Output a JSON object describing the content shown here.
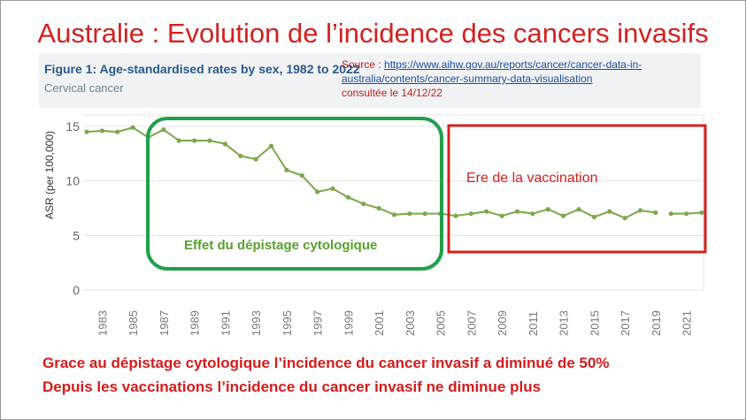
{
  "title": "Australie : Evolution de l’incidence des cancers invasifs",
  "figure": {
    "title": "Figure 1: Age-standardised rates by sex, 1982 to 2022",
    "subtitle": "Cervical cancer"
  },
  "source": {
    "prefix": "Source : ",
    "url_text": "https://www.aihw.gov.au/reports/cancer/cancer-data-in-australia/contents/cancer-summary-data-visualisation",
    "consulted": "consultée le 14/12/22"
  },
  "annotations": {
    "screening": "Effet du dépistage cytologique",
    "vaccination": "Ere de la vaccination"
  },
  "colors": {
    "title": "#d42020",
    "line": "#7aa84a",
    "screening_box": "#1fa04a",
    "vaccination_box": "#d42020"
  },
  "conclusions": {
    "line1": "Grace au dépistage cytologique l’incidence du cancer invasif a diminué de 50%",
    "line2": "Depuis les vaccinations l’incidence du cancer invasif ne diminue plus"
  },
  "chart_data": {
    "type": "line",
    "title": "Figure 1: Age-standardised rates by sex, 1982 to 2022",
    "subtitle": "Cervical cancer",
    "xlabel": "",
    "ylabel": "ASR (per 100,000)",
    "ylim": [
      0,
      15
    ],
    "yticks": [
      0,
      5,
      10,
      15
    ],
    "xlim": [
      1982,
      2022
    ],
    "xticks": [
      "1983",
      "1985",
      "1987",
      "1989",
      "1991",
      "1993",
      "1995",
      "1997",
      "1999",
      "2001",
      "2003",
      "2005",
      "2007",
      "2009",
      "2011",
      "2013",
      "2015",
      "2017",
      "2019",
      "2021"
    ],
    "grid": true,
    "series": [
      {
        "x": [
          1982,
          1983,
          1984,
          1985,
          1986,
          1987,
          1988,
          1989,
          1990,
          1991,
          1992,
          1993,
          1994,
          1995,
          1996,
          1997,
          1998,
          1999,
          2000,
          2001,
          2002,
          2003,
          2004,
          2005,
          2006,
          2007,
          2008,
          2009,
          2010,
          2011,
          2012,
          2013,
          2014,
          2015,
          2016,
          2017,
          2018,
          2019,
          2020,
          2021,
          2022
        ],
        "values": [
          14.5,
          14.6,
          14.5,
          14.9,
          14.0,
          14.7,
          13.7,
          13.7,
          13.7,
          13.4,
          12.3,
          12.0,
          13.2,
          11.0,
          10.5,
          9.0,
          9.3,
          8.5,
          7.9,
          7.5,
          6.9,
          7.0,
          7.0,
          7.0,
          6.8,
          7.0,
          7.2,
          6.8,
          7.2,
          7.0,
          7.4,
          6.8,
          7.4,
          6.7,
          7.2,
          6.6,
          7.3,
          7.1,
          7.0,
          7.0,
          7.1
        ]
      }
    ]
  }
}
